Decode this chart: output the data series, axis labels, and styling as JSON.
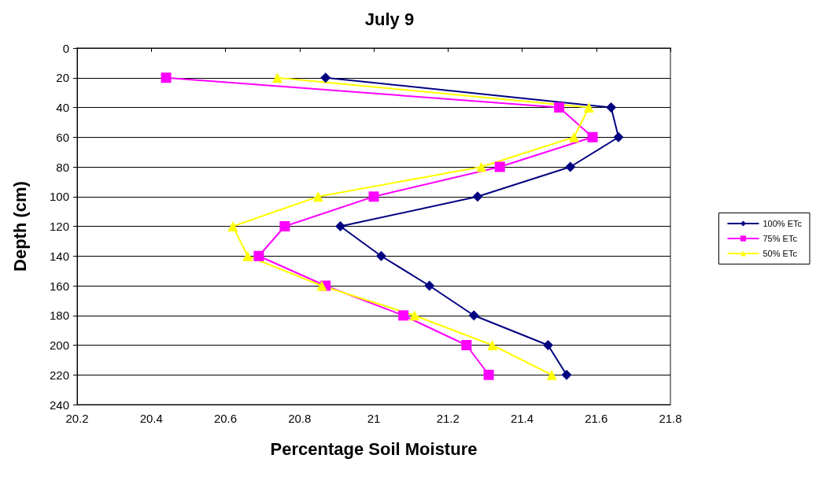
{
  "chart_data": {
    "type": "line",
    "title": "July 9",
    "xlabel": "Percentage Soil Moisture",
    "ylabel": "Depth (cm)",
    "xlim": [
      20.2,
      21.8
    ],
    "xticks": [
      20.2,
      20.4,
      20.6,
      20.8,
      21,
      21.2,
      21.4,
      21.6,
      21.8
    ],
    "ylim": [
      240,
      0
    ],
    "yticks": [
      0,
      20,
      40,
      60,
      80,
      100,
      120,
      140,
      160,
      180,
      200,
      220,
      240
    ],
    "grid": "y",
    "legend": "right",
    "line_style": "solid",
    "series": [
      {
        "name": "100% ETc",
        "color": "#000080",
        "marker": "diamond",
        "x": [
          20.87,
          21.64,
          21.66,
          21.53,
          21.28,
          20.91,
          21.02,
          21.15,
          21.27,
          21.47,
          21.52
        ],
        "values": [
          20,
          40,
          60,
          80,
          100,
          120,
          140,
          160,
          180,
          200,
          220
        ]
      },
      {
        "name": "75% ETc",
        "color": "#ff00ff",
        "marker": "square",
        "x": [
          20.44,
          21.5,
          21.59,
          21.34,
          21.0,
          20.76,
          20.69,
          20.87,
          21.08,
          21.25,
          21.31
        ],
        "values": [
          20,
          40,
          60,
          80,
          100,
          120,
          140,
          160,
          180,
          200,
          220
        ]
      },
      {
        "name": "50% ETc",
        "color": "#ffff00",
        "marker": "triangle",
        "x": [
          20.74,
          21.58,
          21.54,
          21.29,
          20.85,
          20.62,
          20.66,
          20.86,
          21.11,
          21.32,
          21.48
        ],
        "values": [
          20,
          40,
          60,
          80,
          100,
          120,
          140,
          160,
          180,
          200,
          220
        ]
      }
    ]
  }
}
